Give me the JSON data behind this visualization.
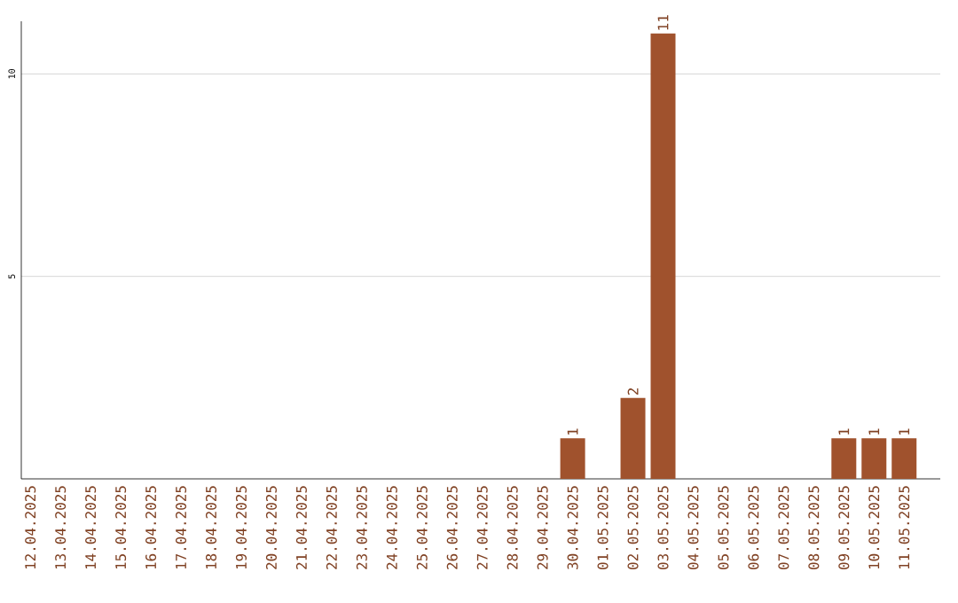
{
  "chart_data": {
    "type": "bar",
    "categories": [
      "12.04.2025",
      "13.04.2025",
      "14.04.2025",
      "15.04.2025",
      "16.04.2025",
      "17.04.2025",
      "18.04.2025",
      "19.04.2025",
      "20.04.2025",
      "21.04.2025",
      "22.04.2025",
      "23.04.2025",
      "24.04.2025",
      "25.04.2025",
      "26.04.2025",
      "27.04.2025",
      "28.04.2025",
      "29.04.2025",
      "30.04.2025",
      "01.05.2025",
      "02.05.2025",
      "03.05.2025",
      "04.05.2025",
      "05.05.2025",
      "06.05.2025",
      "07.05.2025",
      "08.05.2025",
      "09.05.2025",
      "10.05.2025",
      "11.05.2025"
    ],
    "values": [
      0,
      0,
      0,
      0,
      0,
      0,
      0,
      0,
      0,
      0,
      0,
      0,
      0,
      0,
      0,
      0,
      0,
      0,
      1,
      0,
      2,
      11,
      0,
      0,
      0,
      0,
      0,
      1,
      1,
      1
    ],
    "value_labels": [
      null,
      null,
      null,
      null,
      null,
      null,
      null,
      null,
      null,
      null,
      null,
      null,
      null,
      null,
      null,
      null,
      null,
      null,
      "1",
      null,
      "2",
      "11",
      null,
      null,
      null,
      null,
      null,
      "1",
      "1",
      "1"
    ],
    "color": "#a0522d",
    "ylim": [
      0,
      11.3
    ],
    "yticks": [
      5,
      10
    ],
    "grid": "y"
  }
}
